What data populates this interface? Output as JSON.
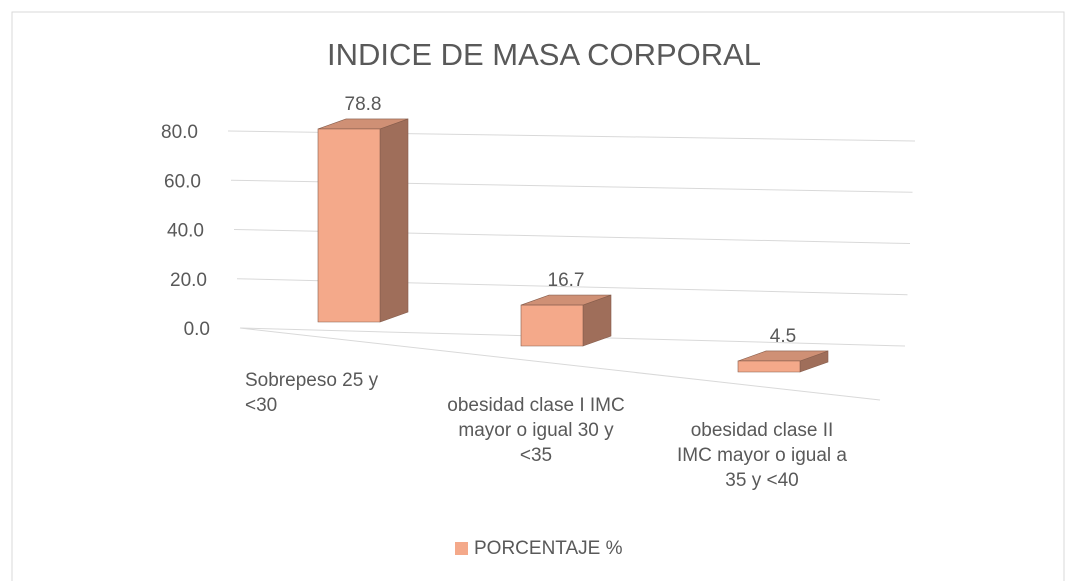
{
  "chart_data": {
    "type": "bar3d",
    "title": "INDICE DE MASA CORPORAL",
    "categories": [
      "Sobrepeso  25 y <30",
      "obesidad clase I IMC mayor o igual 30 y <35",
      "obesidad clase II IMC mayor o igual a 35 y <40"
    ],
    "series": [
      {
        "name": "PORCENTAJE %",
        "color": "#f4a98a",
        "values": [
          78.8,
          16.7,
          4.5
        ]
      }
    ],
    "ylim": [
      0,
      80
    ],
    "yticks": [
      {
        "value": 0,
        "label": "0.0"
      },
      {
        "value": 20,
        "label": "20.0"
      },
      {
        "value": 40,
        "label": "40.0"
      },
      {
        "value": 60,
        "label": "60.0"
      },
      {
        "value": 80,
        "label": "80.0"
      }
    ],
    "grid": true,
    "legend": "bottom"
  }
}
